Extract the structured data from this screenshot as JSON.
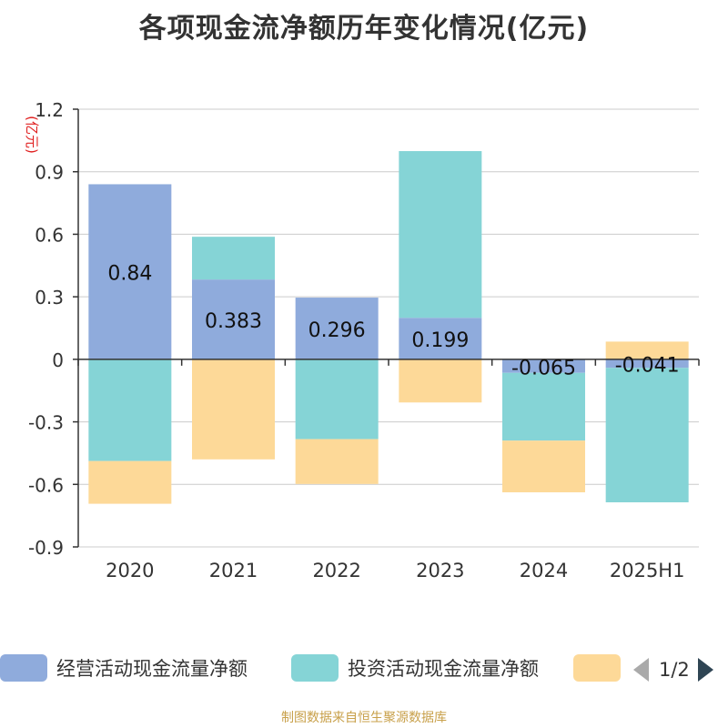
{
  "chart_data": {
    "type": "bar",
    "stacked": true,
    "title": "各项现金流净额历年变化情况(亿元)",
    "unit_label": "(亿元)",
    "categories": [
      "2020",
      "2021",
      "2022",
      "2023",
      "2024",
      "2025H1"
    ],
    "ylim": [
      -0.9,
      1.2
    ],
    "yticks": [
      1.2,
      0.9,
      0.6,
      0.3,
      0,
      -0.3,
      -0.6,
      -0.9
    ],
    "ytick_labels": [
      "1.2",
      "0.9",
      "0.6",
      "0.3",
      "0",
      "-0.3",
      "-0.6",
      "-0.9"
    ],
    "grid": true,
    "series": [
      {
        "name": "经营活动现金流量净额",
        "color": "#8fabdc",
        "values": [
          0.84,
          0.383,
          0.296,
          0.199,
          -0.065,
          -0.041
        ],
        "labels": [
          "0.84",
          "0.383",
          "0.296",
          "0.199",
          "-0.065",
          "-0.041"
        ]
      },
      {
        "name": "投资活动现金流量净额",
        "color": "#85d4d6",
        "values": [
          -0.488,
          0.205,
          -0.383,
          0.8,
          -0.325,
          -0.645
        ]
      },
      {
        "name": "",
        "color": "#fdd998",
        "values": [
          -0.205,
          -0.48,
          -0.215,
          -0.207,
          -0.248,
          0.085
        ]
      }
    ]
  },
  "legend": {
    "items": [
      {
        "label": "经营活动现金流量净额",
        "color": "#8fabdc"
      },
      {
        "label": "投资活动现金流量净额",
        "color": "#85d4d6"
      },
      {
        "label": "",
        "color": "#fdd998"
      }
    ],
    "page_text": "1/2"
  },
  "footer": "制图数据来自恒生聚源数据库"
}
